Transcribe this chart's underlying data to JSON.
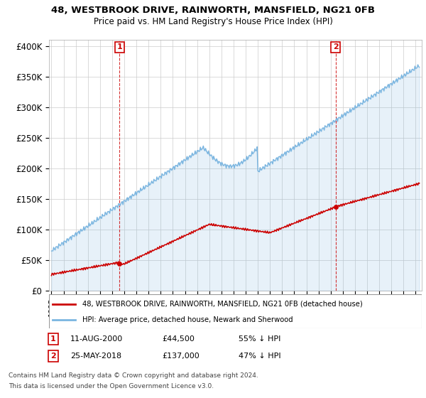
{
  "title": "48, WESTBROOK DRIVE, RAINWORTH, MANSFIELD, NG21 0FB",
  "subtitle": "Price paid vs. HM Land Registry's House Price Index (HPI)",
  "ylabel_ticks": [
    "£0",
    "£50K",
    "£100K",
    "£150K",
    "£200K",
    "£250K",
    "£300K",
    "£350K",
    "£400K"
  ],
  "ytick_values": [
    0,
    50000,
    100000,
    150000,
    200000,
    250000,
    300000,
    350000,
    400000
  ],
  "ylim": [
    0,
    410000
  ],
  "xlim_start": 1994.8,
  "xlim_end": 2025.5,
  "sale1_x": 2000.61,
  "sale1_y": 44500,
  "sale1_label": "1",
  "sale1_date": "11-AUG-2000",
  "sale1_price": "£44,500",
  "sale1_note": "55% ↓ HPI",
  "sale2_x": 2018.4,
  "sale2_y": 137000,
  "sale2_label": "2",
  "sale2_date": "25-MAY-2018",
  "sale2_price": "£137,000",
  "sale2_note": "47% ↓ HPI",
  "hpi_color": "#7ab5e0",
  "hpi_fill_color": "#d6eaf8",
  "sale_color": "#cc0000",
  "marker_color": "#cc0000",
  "dashed_color": "#cc0000",
  "legend_label_sale": "48, WESTBROOK DRIVE, RAINWORTH, MANSFIELD, NG21 0FB (detached house)",
  "legend_label_hpi": "HPI: Average price, detached house, Newark and Sherwood",
  "footer1": "Contains HM Land Registry data © Crown copyright and database right 2024.",
  "footer2": "This data is licensed under the Open Government Licence v3.0.",
  "background_color": "#ffffff",
  "grid_color": "#cccccc"
}
